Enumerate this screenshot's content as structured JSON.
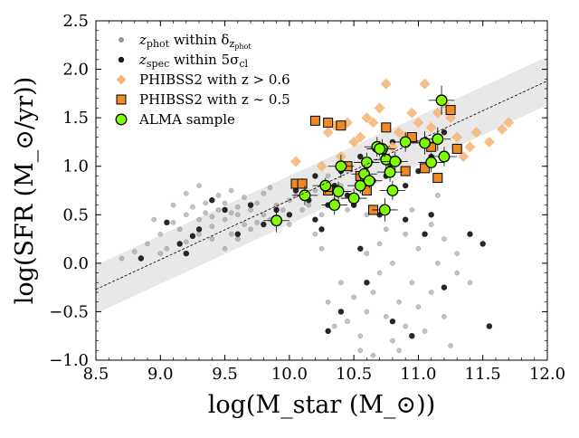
{
  "chart_data": {
    "type": "scatter",
    "xlabel": "log(M_star (M_⊙))",
    "ylabel": "log(SFR (M_⊙/yr))",
    "xlim": [
      8.5,
      12.0
    ],
    "ylim": [
      -1.0,
      2.5
    ],
    "xticks": [
      "8.5",
      "9.0",
      "9.5",
      "10.0",
      "10.5",
      "11.0",
      "11.5",
      "12.0"
    ],
    "yticks": [
      "−1.0",
      "−0.5",
      "0.0",
      "0.5",
      "1.0",
      "1.5",
      "2.0",
      "2.5"
    ],
    "grid": false,
    "legend_position": "top-left",
    "main_sequence": {
      "line": [
        [
          8.5,
          -0.27
        ],
        [
          12.0,
          1.88
        ]
      ],
      "band_halfwidth": 0.25,
      "band_color": "#e8e8e8",
      "line_style": "dashed"
    },
    "legend": {
      "entries": [
        {
          "label_main": "z",
          "label_sub": "phot",
          "label_rest": " within δ",
          "label_sub2": "z",
          "label_sub3": "phot",
          "series": "zphot"
        },
        {
          "label_main": "z",
          "label_sub": "spec",
          "label_rest": " within 5σ",
          "label_sub2": "cl",
          "series": "zspec"
        },
        {
          "text": "PHIBSS2 with z > 0.6",
          "series": "phibss_high"
        },
        {
          "text": "PHIBSS2 with z ∼ 0.5",
          "series": "phibss_low"
        },
        {
          "text": "ALMA sample",
          "series": "alma"
        }
      ]
    },
    "series": [
      {
        "name": "zphot within δz_phot",
        "key": "zphot",
        "color": "#999999",
        "marker": "circle-small",
        "points": [
          [
            8.7,
            0.05
          ],
          [
            8.8,
            0.12
          ],
          [
            8.9,
            0.2
          ],
          [
            9.0,
            0.3
          ],
          [
            9.05,
            0.15
          ],
          [
            9.1,
            0.42
          ],
          [
            9.15,
            0.35
          ],
          [
            9.2,
            0.5
          ],
          [
            9.2,
            0.22
          ],
          [
            9.25,
            0.58
          ],
          [
            9.3,
            0.45
          ],
          [
            9.3,
            0.3
          ],
          [
            9.35,
            0.62
          ],
          [
            9.4,
            0.48
          ],
          [
            9.4,
            0.38
          ],
          [
            9.45,
            0.7
          ],
          [
            9.45,
            0.55
          ],
          [
            9.5,
            0.45
          ],
          [
            9.5,
            0.62
          ],
          [
            9.55,
            0.3
          ],
          [
            9.55,
            0.75
          ],
          [
            9.6,
            0.5
          ],
          [
            9.6,
            0.58
          ],
          [
            9.65,
            0.4
          ],
          [
            9.65,
            0.68
          ],
          [
            9.7,
            0.55
          ],
          [
            9.7,
            0.35
          ],
          [
            9.75,
            0.62
          ],
          [
            9.8,
            0.5
          ],
          [
            9.8,
            0.72
          ],
          [
            9.85,
            0.45
          ],
          [
            9.9,
            0.6
          ],
          [
            9.95,
            0.55
          ],
          [
            10.0,
            0.65
          ],
          [
            10.0,
            0.4
          ],
          [
            10.05,
            0.7
          ],
          [
            10.1,
            0.55
          ],
          [
            10.1,
            0.85
          ],
          [
            10.15,
            0.6
          ],
          [
            10.2,
            0.75
          ],
          [
            10.25,
            0.5
          ],
          [
            10.3,
            0.9
          ],
          [
            10.35,
            0.65
          ],
          [
            10.4,
            0.8
          ],
          [
            10.45,
            0.55
          ],
          [
            10.5,
            0.7
          ],
          [
            9.1,
            0.6
          ],
          [
            9.2,
            0.72
          ],
          [
            9.3,
            0.8
          ],
          [
            9.4,
            0.25
          ],
          [
            9.5,
            0.15
          ],
          [
            9.6,
            0.25
          ],
          [
            9.0,
            0.1
          ],
          [
            8.95,
            0.45
          ],
          [
            9.35,
            0.52
          ],
          [
            9.55,
            0.52
          ],
          [
            9.75,
            0.42
          ],
          [
            9.85,
            0.78
          ],
          [
            10.2,
            0.3
          ],
          [
            10.4,
            -0.2
          ],
          [
            10.5,
            -0.35
          ],
          [
            10.45,
            -0.6
          ],
          [
            10.55,
            -0.75
          ],
          [
            10.6,
            -0.5
          ],
          [
            10.65,
            -0.3
          ],
          [
            10.7,
            -0.1
          ],
          [
            10.75,
            -0.55
          ],
          [
            10.8,
            -0.8
          ],
          [
            10.85,
            -0.4
          ],
          [
            10.9,
            -0.65
          ],
          [
            10.95,
            -0.2
          ],
          [
            11.0,
            -0.45
          ],
          [
            11.05,
            -0.7
          ],
          [
            11.1,
            -0.3
          ],
          [
            11.15,
            0.0
          ],
          [
            11.2,
            -0.55
          ],
          [
            11.25,
            -0.85
          ],
          [
            10.6,
            0.1
          ],
          [
            10.7,
            0.2
          ],
          [
            10.8,
            0.0
          ],
          [
            10.9,
            0.3
          ],
          [
            11.0,
            0.15
          ],
          [
            11.1,
            0.4
          ],
          [
            11.2,
            0.25
          ],
          [
            11.3,
            0.1
          ],
          [
            11.4,
            -0.2
          ],
          [
            10.3,
            -0.4
          ],
          [
            10.35,
            -0.65
          ],
          [
            10.55,
            -0.9
          ],
          [
            10.65,
            -0.95
          ],
          [
            10.85,
            -0.9
          ],
          [
            11.3,
            -0.1
          ],
          [
            10.6,
            0.5
          ],
          [
            10.75,
            0.35
          ],
          [
            10.95,
            0.55
          ],
          [
            11.15,
            0.7
          ],
          [
            10.25,
            0.15
          ]
        ]
      },
      {
        "name": "zspec within 5σcl",
        "key": "zspec",
        "color": "#1a1a1a",
        "marker": "circle",
        "points": [
          [
            8.85,
            0.05
          ],
          [
            9.2,
            0.1
          ],
          [
            9.3,
            0.35
          ],
          [
            9.5,
            0.55
          ],
          [
            9.6,
            0.3
          ],
          [
            9.7,
            0.6
          ],
          [
            9.8,
            0.4
          ],
          [
            9.9,
            0.55
          ],
          [
            10.0,
            0.5
          ],
          [
            10.05,
            0.75
          ],
          [
            10.15,
            0.65
          ],
          [
            10.2,
            0.9
          ],
          [
            10.25,
            0.35
          ],
          [
            10.3,
            0.6
          ],
          [
            10.35,
            0.8
          ],
          [
            10.4,
            0.95
          ],
          [
            10.45,
            0.7
          ],
          [
            10.5,
            0.6
          ],
          [
            10.55,
            1.1
          ],
          [
            10.6,
            1.0
          ],
          [
            10.65,
            0.85
          ],
          [
            10.7,
            1.15
          ],
          [
            10.75,
            0.9
          ],
          [
            10.8,
            1.25
          ],
          [
            10.85,
            1.05
          ],
          [
            10.9,
            0.8
          ],
          [
            10.95,
            1.3
          ],
          [
            11.0,
            0.95
          ],
          [
            11.1,
            1.1
          ],
          [
            11.2,
            1.35
          ],
          [
            11.3,
            1.2
          ],
          [
            11.4,
            0.3
          ],
          [
            11.5,
            0.2
          ],
          [
            11.55,
            -0.65
          ],
          [
            10.4,
            -0.5
          ],
          [
            10.6,
            -0.2
          ],
          [
            10.8,
            -0.6
          ],
          [
            10.95,
            -0.75
          ],
          [
            11.05,
            0.3
          ],
          [
            11.2,
            -0.25
          ],
          [
            10.7,
            0.5
          ],
          [
            10.9,
            0.45
          ],
          [
            10.55,
            0.15
          ],
          [
            10.3,
            -0.7
          ],
          [
            11.1,
            0.5
          ],
          [
            10.2,
            0.45
          ],
          [
            9.4,
            0.65
          ],
          [
            9.25,
            0.28
          ],
          [
            9.15,
            0.2
          ],
          [
            9.05,
            0.42
          ]
        ]
      },
      {
        "name": "PHIBSS2 with z > 0.6",
        "key": "phibss_high",
        "color": "#f5b87a",
        "marker": "diamond",
        "points": [
          [
            10.05,
            1.05
          ],
          [
            10.3,
            1.35
          ],
          [
            10.35,
            1.42
          ],
          [
            10.45,
            1.45
          ],
          [
            10.5,
            1.25
          ],
          [
            10.55,
            1.3
          ],
          [
            10.6,
            1.5
          ],
          [
            10.7,
            1.6
          ],
          [
            10.75,
            1.85
          ],
          [
            10.8,
            1.2
          ],
          [
            10.85,
            1.35
          ],
          [
            10.9,
            1.3
          ],
          [
            10.95,
            1.55
          ],
          [
            11.0,
            1.45
          ],
          [
            11.05,
            1.25
          ],
          [
            11.1,
            1.4
          ],
          [
            11.15,
            1.55
          ],
          [
            11.2,
            1.65
          ],
          [
            11.25,
            1.5
          ],
          [
            11.3,
            1.3
          ],
          [
            11.4,
            1.2
          ],
          [
            11.45,
            1.35
          ],
          [
            11.55,
            1.25
          ],
          [
            11.65,
            1.38
          ],
          [
            11.7,
            1.45
          ],
          [
            11.35,
            1.1
          ],
          [
            10.65,
            1.45
          ],
          [
            11.05,
            1.85
          ],
          [
            10.4,
            1.1
          ],
          [
            10.25,
            1.0
          ]
        ]
      },
      {
        "name": "PHIBSS2 with z ∼ 0.5",
        "key": "phibss_low",
        "color": "#f08a24",
        "marker": "square",
        "points": [
          [
            10.05,
            0.82
          ],
          [
            10.1,
            0.82
          ],
          [
            10.2,
            1.47
          ],
          [
            10.3,
            1.45
          ],
          [
            10.4,
            1.42
          ],
          [
            10.3,
            0.75
          ],
          [
            10.45,
            1.0
          ],
          [
            10.55,
            0.9
          ],
          [
            10.6,
            0.75
          ],
          [
            10.65,
            0.55
          ],
          [
            10.75,
            1.4
          ],
          [
            10.8,
            1.05
          ],
          [
            10.9,
            0.95
          ],
          [
            10.95,
            1.3
          ],
          [
            11.05,
            0.98
          ],
          [
            11.1,
            1.2
          ],
          [
            11.15,
            0.88
          ],
          [
            11.25,
            1.58
          ],
          [
            11.3,
            1.18
          ]
        ]
      },
      {
        "name": "ALMA sample",
        "key": "alma",
        "color": "#7fff00",
        "marker": "circle-large",
        "points": [
          [
            9.9,
            0.44,
            0.12
          ],
          [
            10.12,
            0.7,
            0.1
          ],
          [
            10.28,
            0.8,
            0.08
          ],
          [
            10.35,
            0.6,
            0.1
          ],
          [
            10.38,
            0.74,
            0.1
          ],
          [
            10.4,
            1.0,
            0.12
          ],
          [
            10.5,
            0.67,
            0.1
          ],
          [
            10.55,
            0.8,
            0.08
          ],
          [
            10.58,
            0.92,
            0.08
          ],
          [
            10.6,
            1.04,
            0.1
          ],
          [
            10.62,
            0.85,
            0.08
          ],
          [
            10.68,
            1.2,
            0.1
          ],
          [
            10.72,
            1.18,
            0.1
          ],
          [
            10.74,
            0.55,
            0.12
          ],
          [
            10.75,
            1.07,
            0.1
          ],
          [
            10.78,
            0.94,
            0.1
          ],
          [
            10.8,
            0.75,
            0.1
          ],
          [
            10.82,
            1.05,
            0.1
          ],
          [
            10.9,
            1.25,
            0.1
          ],
          [
            11.05,
            1.24,
            0.12
          ],
          [
            11.1,
            1.04,
            0.1
          ],
          [
            11.15,
            1.28,
            0.12
          ],
          [
            11.2,
            1.1,
            0.1
          ],
          [
            11.18,
            1.68,
            0.15
          ],
          [
            10.7,
            1.18,
            0.08
          ]
        ]
      }
    ]
  }
}
